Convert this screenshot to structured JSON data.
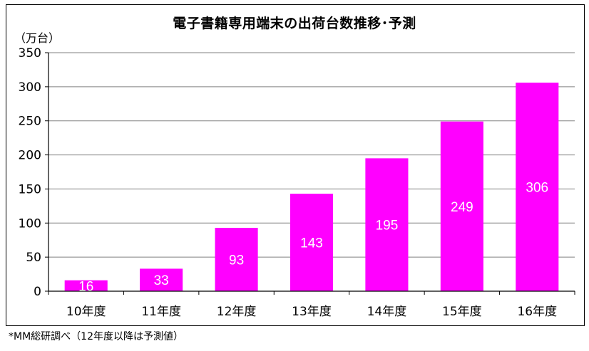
{
  "chart_data": {
    "type": "bar",
    "title": "電子書籍専用端末の出荷台数推移･予測",
    "ylabel": "（万台）",
    "xlabel": "",
    "categories": [
      "10年度",
      "11年度",
      "12年度",
      "13年度",
      "14年度",
      "15年度",
      "16年度"
    ],
    "values": [
      16,
      33,
      93,
      143,
      195,
      249,
      306
    ],
    "data_labels": [
      "16",
      "33",
      "93",
      "143",
      "195",
      "249",
      "306"
    ],
    "ylim": [
      0,
      350
    ],
    "yticks": [
      0,
      50,
      100,
      150,
      200,
      250,
      300,
      350
    ],
    "grid": true,
    "legend": "none",
    "colors": {
      "bar": "#ff00ff",
      "bar_label": "#ffffff",
      "grid": "#808080",
      "axis": "#000000"
    },
    "footnote": "*MM総研調べ（12年度以降は予測値）"
  }
}
